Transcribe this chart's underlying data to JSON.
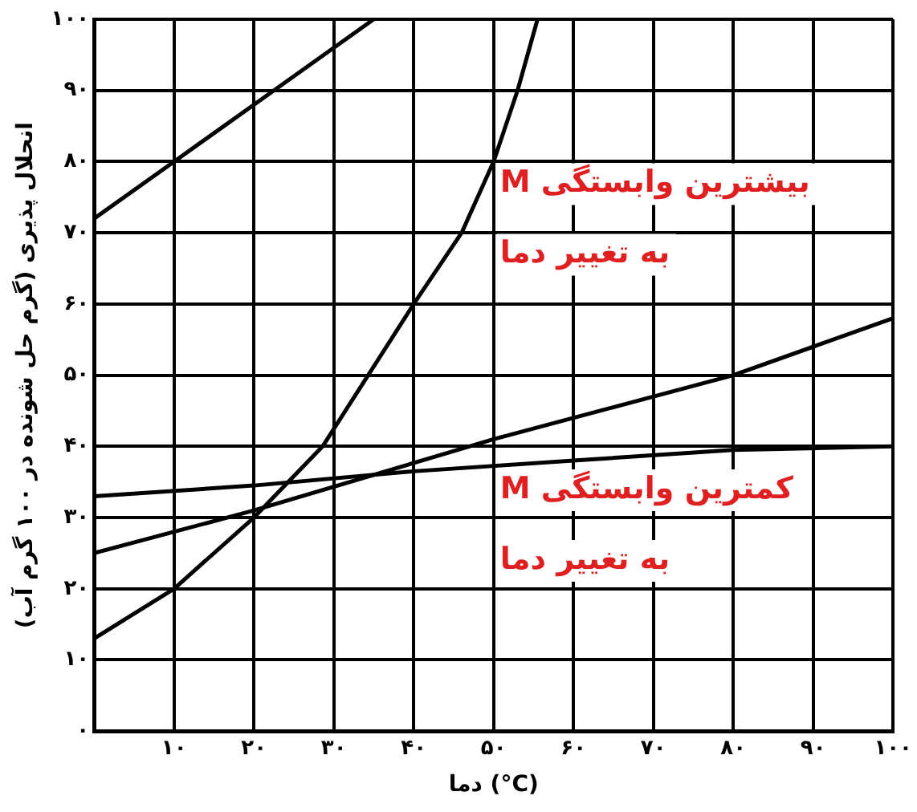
{
  "chart_data": {
    "type": "line",
    "xlabel": "دما (°C)",
    "ylabel": "انحلال پذیری (گرم حل شونده در ۱۰۰ گرم آب)",
    "xlim": [
      0,
      100
    ],
    "ylim": [
      0,
      100
    ],
    "xticks": [
      {
        "value": 0,
        "label": null
      },
      {
        "value": 10,
        "label": "۱۰"
      },
      {
        "value": 20,
        "label": "۲۰"
      },
      {
        "value": 30,
        "label": "۳۰"
      },
      {
        "value": 40,
        "label": "۴۰"
      },
      {
        "value": 50,
        "label": "۵۰"
      },
      {
        "value": 60,
        "label": "۶۰"
      },
      {
        "value": 70,
        "label": "۷۰"
      },
      {
        "value": 80,
        "label": "۸۰"
      },
      {
        "value": 90,
        "label": "۹۰"
      },
      {
        "value": 100,
        "label": "۱۰۰"
      }
    ],
    "yticks": [
      {
        "value": 0,
        "label": "۰"
      },
      {
        "value": 10,
        "label": "۱۰"
      },
      {
        "value": 20,
        "label": "۲۰"
      },
      {
        "value": 30,
        "label": "۳۰"
      },
      {
        "value": 40,
        "label": "۴۰"
      },
      {
        "value": 50,
        "label": "۵۰"
      },
      {
        "value": 60,
        "label": "۶۰"
      },
      {
        "value": 70,
        "label": "۷۰"
      },
      {
        "value": 80,
        "label": "۸۰"
      },
      {
        "value": 90,
        "label": "۹۰"
      },
      {
        "value": 100,
        "label": "۱۰۰"
      }
    ],
    "grid": true,
    "legend": false,
    "marker": "none",
    "line_style": "solid",
    "series": [
      {
        "color": "#000000",
        "x": [
          0,
          10,
          20,
          30,
          35
        ],
        "values": [
          72,
          80,
          88,
          96,
          100
        ]
      },
      {
        "color": "#000000",
        "x": [
          0,
          10,
          20,
          28.6,
          40,
          46,
          50,
          53,
          55.5
        ],
        "values": [
          13,
          20,
          30,
          40,
          60,
          70,
          80,
          90,
          100
        ]
      },
      {
        "color": "#000000",
        "x": [
          0,
          20,
          50,
          80,
          100
        ],
        "values": [
          25,
          31,
          41,
          50,
          58
        ]
      },
      {
        "color": "#000000",
        "x": [
          0,
          20,
          40,
          60,
          80,
          100
        ],
        "values": [
          33,
          34.5,
          36.5,
          38,
          39.5,
          40
        ]
      }
    ],
    "annotations": [
      {
        "text": "بیشترین وابستگی M\nبه تغییر دما",
        "x": 50,
        "y": 80
      },
      {
        "text": "کمترین وابستگی M\nبه تغییر دما",
        "x": 50,
        "y": 37
      }
    ]
  }
}
